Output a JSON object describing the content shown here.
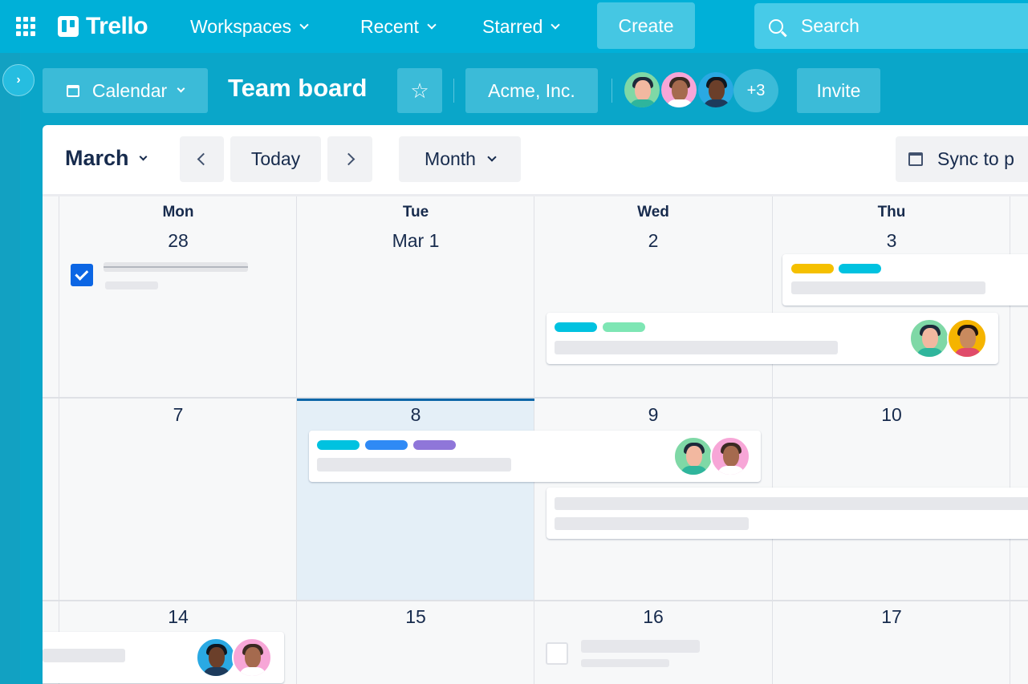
{
  "nav": {
    "brand": "Trello",
    "workspaces": "Workspaces",
    "recent": "Recent",
    "starred": "Starred",
    "create": "Create",
    "search_placeholder": "Search"
  },
  "board": {
    "view": "Calendar",
    "title": "Team board",
    "workspace": "Acme, Inc.",
    "members_more": "+3",
    "invite": "Invite"
  },
  "calendar": {
    "month": "March",
    "today": "Today",
    "view_mode": "Month",
    "sync": "Sync to p",
    "weekdays": [
      "Mon",
      "Tue",
      "Wed",
      "Thu"
    ],
    "weeks": [
      [
        "28",
        "Mar 1",
        "2",
        "3"
      ],
      [
        "7",
        "8",
        "9",
        "10"
      ],
      [
        "14",
        "15",
        "16",
        "17"
      ]
    ],
    "today_date": "8"
  },
  "colors": {
    "yellow": "#f5c000",
    "cyan": "#00c2e0",
    "green": "#7ee6b4",
    "blue": "#2f8af5",
    "purple": "#8f76d9"
  }
}
